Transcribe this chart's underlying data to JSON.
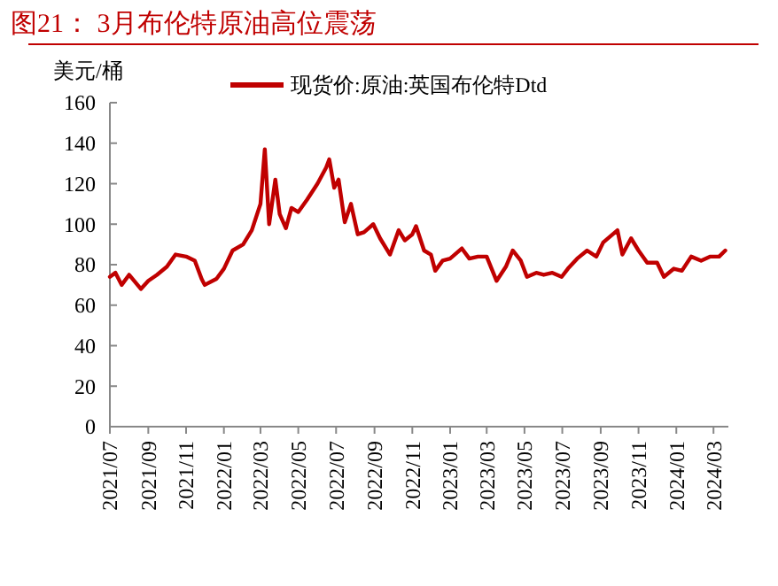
{
  "chart_data": {
    "type": "line",
    "title": "图21： 3月布伦特原油高位震荡",
    "ylabel": "美元/桶",
    "ylim": [
      0,
      160
    ],
    "yticks": [
      0,
      20,
      40,
      60,
      80,
      100,
      120,
      140,
      160
    ],
    "xlim": [
      "2021-07-01",
      "2024-03-25"
    ],
    "xticks": [
      {
        "value": "2021-07-01",
        "label": "2021/07"
      },
      {
        "value": "2021-09-01",
        "label": "2021/09"
      },
      {
        "value": "2021-11-01",
        "label": "2021/11"
      },
      {
        "value": "2022-01-01",
        "label": "2022/01"
      },
      {
        "value": "2022-03-01",
        "label": "2022/03"
      },
      {
        "value": "2022-05-01",
        "label": "2022/05"
      },
      {
        "value": "2022-07-01",
        "label": "2022/07"
      },
      {
        "value": "2022-09-01",
        "label": "2022/09"
      },
      {
        "value": "2022-11-01",
        "label": "2022/11"
      },
      {
        "value": "2023-01-01",
        "label": "2023/01"
      },
      {
        "value": "2023-03-01",
        "label": "2023/03"
      },
      {
        "value": "2023-05-01",
        "label": "2023/05"
      },
      {
        "value": "2023-07-01",
        "label": "2023/07"
      },
      {
        "value": "2023-09-01",
        "label": "2023/09"
      },
      {
        "value": "2023-11-01",
        "label": "2023/11"
      },
      {
        "value": "2024-01-01",
        "label": "2024/01"
      },
      {
        "value": "2024-03-01",
        "label": "2024/03"
      }
    ],
    "x": [
      "2021-07-01",
      "2021-07-10",
      "2021-07-20",
      "2021-08-01",
      "2021-08-20",
      "2021-09-01",
      "2021-09-15",
      "2021-10-01",
      "2021-10-15",
      "2021-11-01",
      "2021-11-15",
      "2021-11-26",
      "2021-12-01",
      "2021-12-20",
      "2022-01-01",
      "2022-01-15",
      "2022-02-01",
      "2022-02-15",
      "2022-03-01",
      "2022-03-08",
      "2022-03-15",
      "2022-03-25",
      "2022-04-01",
      "2022-04-11",
      "2022-04-20",
      "2022-05-01",
      "2022-05-15",
      "2022-06-01",
      "2022-06-15",
      "2022-06-20",
      "2022-06-28",
      "2022-07-05",
      "2022-07-15",
      "2022-07-25",
      "2022-08-05",
      "2022-08-15",
      "2022-08-30",
      "2022-09-10",
      "2022-09-26",
      "2022-10-10",
      "2022-10-20",
      "2022-11-01",
      "2022-11-07",
      "2022-11-20",
      "2022-12-01",
      "2022-12-08",
      "2022-12-20",
      "2023-01-01",
      "2023-01-20",
      "2023-02-01",
      "2023-02-15",
      "2023-03-01",
      "2023-03-17",
      "2023-04-01",
      "2023-04-12",
      "2023-04-25",
      "2023-05-05",
      "2023-05-20",
      "2023-06-01",
      "2023-06-15",
      "2023-06-30",
      "2023-07-10",
      "2023-07-25",
      "2023-08-10",
      "2023-08-25",
      "2023-09-05",
      "2023-09-28",
      "2023-10-06",
      "2023-10-20",
      "2023-11-01",
      "2023-11-15",
      "2023-12-01",
      "2023-12-12",
      "2023-12-28",
      "2024-01-10",
      "2024-01-25",
      "2024-02-10",
      "2024-02-25",
      "2024-03-10",
      "2024-03-20"
    ],
    "series": [
      {
        "name": "现货价:原油:英国布伦特Dtd",
        "color": "#c00000",
        "values": [
          74,
          76,
          70,
          75,
          68,
          72,
          75,
          79,
          85,
          84,
          82,
          73,
          70,
          73,
          78,
          87,
          90,
          97,
          110,
          137,
          100,
          122,
          105,
          98,
          108,
          106,
          112,
          120,
          128,
          132,
          118,
          122,
          101,
          110,
          95,
          96,
          100,
          93,
          85,
          97,
          92,
          95,
          99,
          87,
          85,
          77,
          82,
          83,
          88,
          83,
          84,
          84,
          72,
          79,
          87,
          82,
          74,
          76,
          75,
          76,
          74,
          78,
          83,
          87,
          84,
          91,
          97,
          85,
          93,
          87,
          81,
          81,
          74,
          78,
          77,
          84,
          82,
          84,
          84,
          87
        ]
      }
    ],
    "legend": "top",
    "grid": false,
    "line_style": "solid",
    "marker": "none"
  }
}
